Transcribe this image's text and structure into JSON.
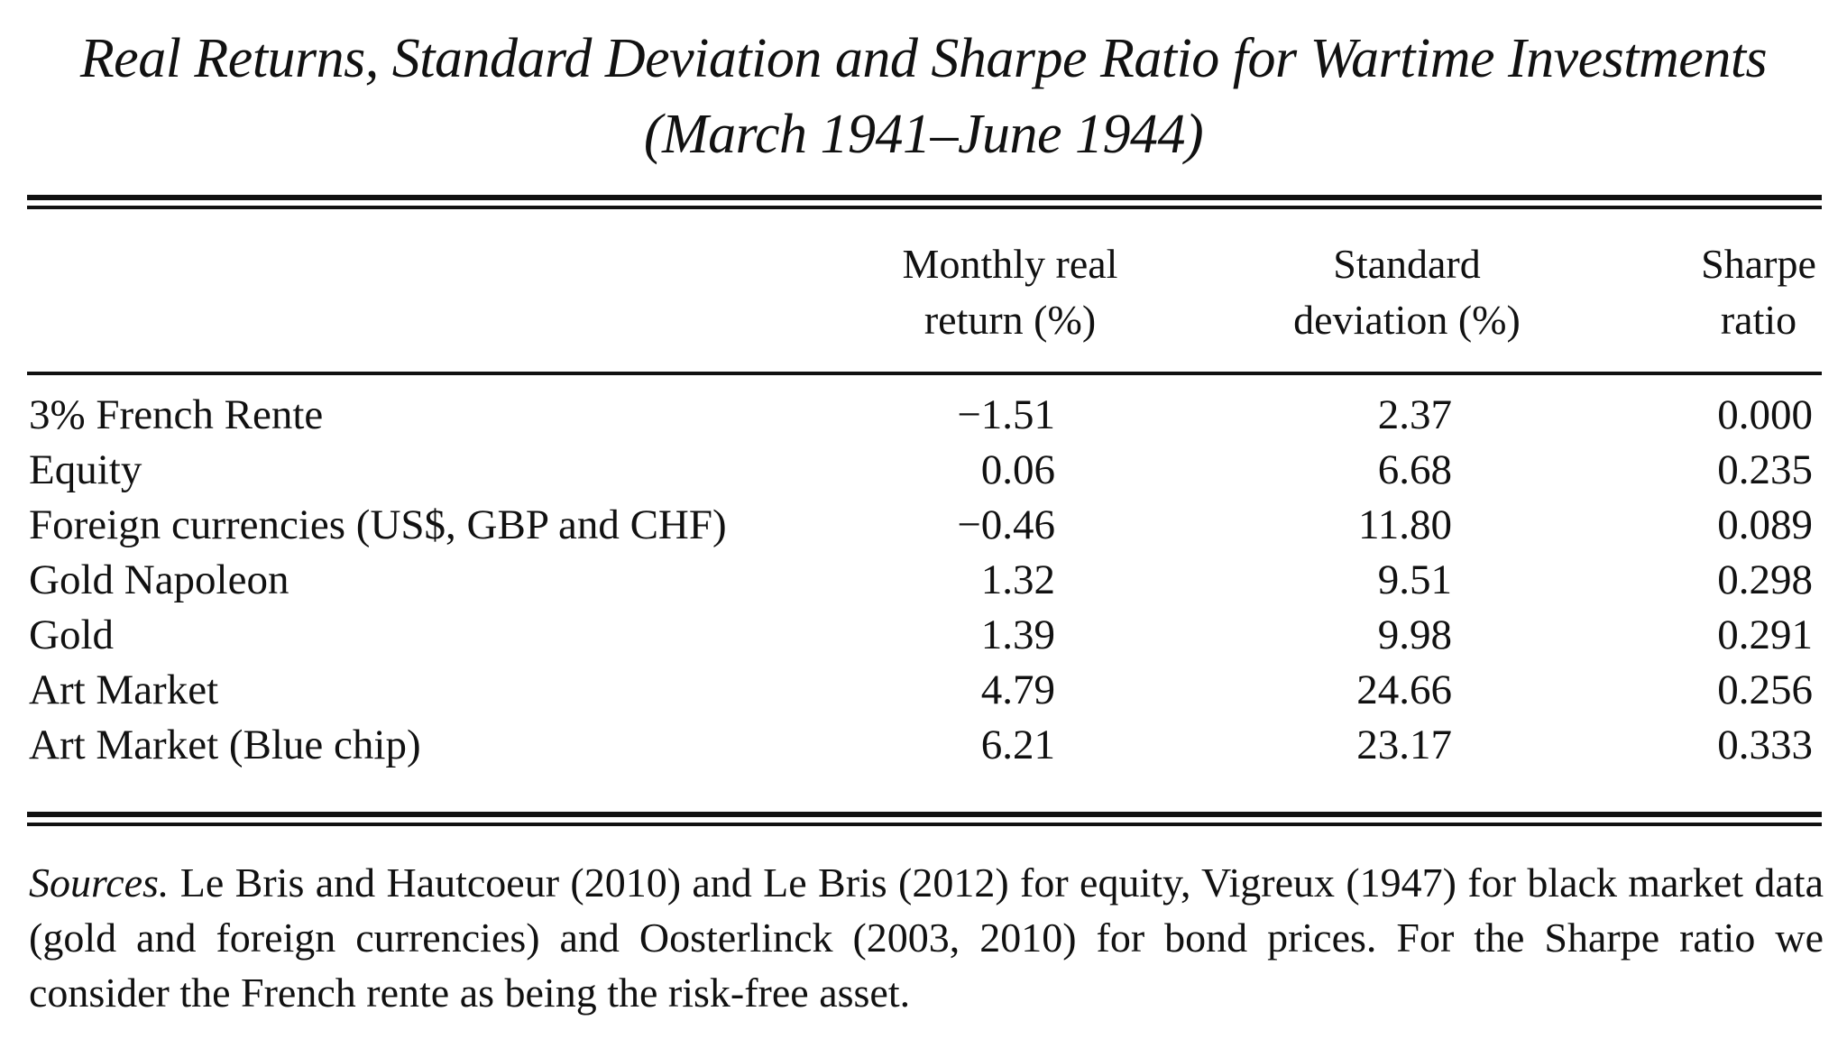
{
  "title": {
    "line1": "Real Returns, Standard Deviation and Sharpe Ratio for Wartime Investments",
    "line2": "(March 1941–June 1944)"
  },
  "table": {
    "columns": [
      {
        "line1": "Monthly real",
        "line2": "return (%)"
      },
      {
        "line1": "Standard",
        "line2": "deviation (%)"
      },
      {
        "line1": "Sharpe",
        "line2": "ratio"
      }
    ],
    "rows": [
      {
        "name": "3% French Rente",
        "return": "−1.51",
        "std": "2.37",
        "sharpe": "0.000"
      },
      {
        "name": "Equity",
        "return": "0.06",
        "std": "6.68",
        "sharpe": "0.235"
      },
      {
        "name": "Foreign currencies (US$, GBP and CHF)",
        "return": "−0.46",
        "std": "11.80",
        "sharpe": "0.089"
      },
      {
        "name": "Gold Napoleon",
        "return": "1.32",
        "std": "9.51",
        "sharpe": "0.298"
      },
      {
        "name": "Gold",
        "return": "1.39",
        "std": "9.98",
        "sharpe": "0.291"
      },
      {
        "name": "Art Market",
        "return": "4.79",
        "std": "24.66",
        "sharpe": "0.256"
      },
      {
        "name": "Art Market (Blue chip)",
        "return": "6.21",
        "std": "23.17",
        "sharpe": "0.333"
      }
    ]
  },
  "sources": {
    "label": "Sources.",
    "text": " Le Bris and Hautcoeur (2010) and Le Bris (2012) for equity, Vigreux (1947) for black market data (gold and foreign currencies) and Oosterlinck (2003, 2010) for bond prices. For the Sharpe ratio we consider the French rente as being the risk-free asset."
  }
}
